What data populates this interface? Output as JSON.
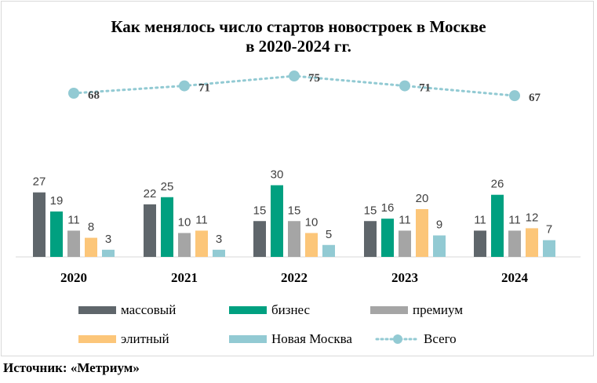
{
  "chart_data": {
    "type": "bar",
    "title_line1": "Как менялось число стартов новостроек в Москве",
    "title_line2": "в 2020-2024 гг.",
    "categories": [
      "2020",
      "2021",
      "2022",
      "2023",
      "2024"
    ],
    "series": [
      {
        "name": "массовый",
        "color": "#5f666b",
        "values": [
          27,
          22,
          15,
          15,
          11
        ]
      },
      {
        "name": "бизнес",
        "color": "#00a080",
        "values": [
          19,
          25,
          30,
          16,
          26
        ]
      },
      {
        "name": "премиум",
        "color": "#a5a5a5",
        "values": [
          11,
          10,
          15,
          11,
          11
        ]
      },
      {
        "name": "элитный",
        "color": "#fcc679",
        "values": [
          8,
          11,
          10,
          20,
          12
        ]
      },
      {
        "name": "Новая Москва",
        "color": "#92cad3",
        "values": [
          3,
          3,
          5,
          9,
          7
        ]
      }
    ],
    "line_series": {
      "name": "Всего",
      "type": "line",
      "style": "dotted",
      "color": "#92cad3",
      "values": [
        68,
        71,
        75,
        71,
        67
      ]
    },
    "legend_position": "bottom",
    "grid": false
  },
  "source": "Источник: «Метриум»"
}
